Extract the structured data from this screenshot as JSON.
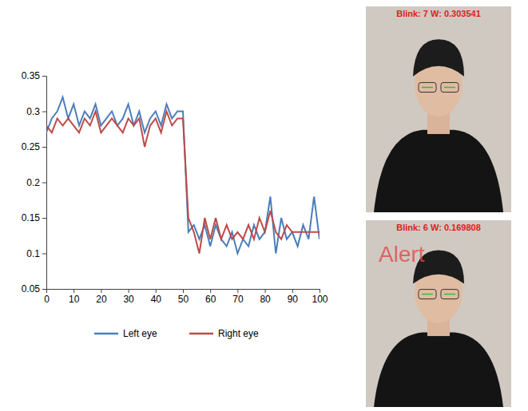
{
  "chart_data": {
    "type": "line",
    "x": [
      0,
      2,
      4,
      6,
      8,
      10,
      12,
      14,
      16,
      18,
      20,
      22,
      24,
      26,
      28,
      30,
      32,
      34,
      36,
      38,
      40,
      42,
      44,
      46,
      48,
      50,
      52,
      54,
      56,
      58,
      60,
      62,
      64,
      66,
      68,
      70,
      72,
      74,
      76,
      78,
      80,
      82,
      84,
      86,
      88,
      90,
      92,
      94,
      96,
      98,
      100
    ],
    "series": [
      {
        "name": "Left eye",
        "color": "#4a7ebb",
        "values": [
          0.27,
          0.29,
          0.3,
          0.32,
          0.29,
          0.31,
          0.28,
          0.3,
          0.29,
          0.31,
          0.28,
          0.29,
          0.3,
          0.28,
          0.29,
          0.31,
          0.28,
          0.3,
          0.27,
          0.29,
          0.3,
          0.28,
          0.31,
          0.29,
          0.3,
          0.3,
          0.13,
          0.14,
          0.12,
          0.14,
          0.11,
          0.14,
          0.12,
          0.11,
          0.13,
          0.1,
          0.12,
          0.11,
          0.14,
          0.12,
          0.13,
          0.18,
          0.1,
          0.15,
          0.12,
          0.13,
          0.11,
          0.14,
          0.12,
          0.18,
          0.12
        ]
      },
      {
        "name": "Right eye",
        "color": "#be4b48",
        "values": [
          0.28,
          0.27,
          0.29,
          0.28,
          0.29,
          0.28,
          0.27,
          0.29,
          0.28,
          0.3,
          0.27,
          0.28,
          0.29,
          0.28,
          0.27,
          0.29,
          0.28,
          0.29,
          0.25,
          0.28,
          0.29,
          0.27,
          0.3,
          0.28,
          0.29,
          0.29,
          0.15,
          0.13,
          0.1,
          0.15,
          0.12,
          0.15,
          0.12,
          0.14,
          0.12,
          0.13,
          0.12,
          0.14,
          0.12,
          0.15,
          0.13,
          0.16,
          0.13,
          0.12,
          0.14,
          0.13,
          0.13,
          0.13,
          0.13,
          0.13,
          0.13
        ]
      }
    ],
    "xlim": [
      0,
      100
    ],
    "xticks": [
      0,
      10,
      20,
      30,
      40,
      50,
      60,
      70,
      80,
      90,
      100
    ],
    "ylim": [
      0.05,
      0.35
    ],
    "yticks": [
      0.05,
      0.1,
      0.15,
      0.2,
      0.25,
      0.3,
      0.35
    ],
    "grid": false,
    "legend": "bottom"
  },
  "panels": [
    {
      "header": "Blink: 7 W: 0.303541"
    },
    {
      "header": "Blink: 6 W: 0.169808",
      "alert": "Alert"
    }
  ]
}
